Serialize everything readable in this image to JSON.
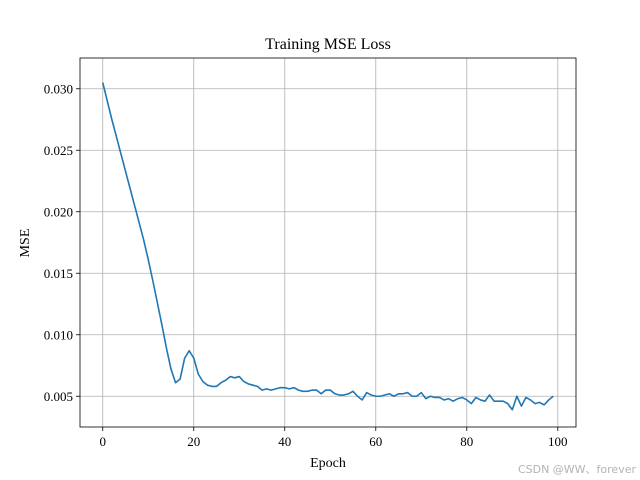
{
  "chart_data": {
    "type": "line",
    "title": "Training MSE Loss",
    "xlabel": "Epoch",
    "ylabel": "MSE",
    "xlim": [
      -5,
      104
    ],
    "ylim": [
      0.0025,
      0.0325
    ],
    "grid": true,
    "x_ticks": [
      0,
      20,
      40,
      60,
      80,
      100
    ],
    "y_ticks": [
      0.005,
      0.01,
      0.015,
      0.02,
      0.025,
      0.03
    ],
    "x_tick_labels": [
      "0",
      "20",
      "40",
      "60",
      "80",
      "100"
    ],
    "y_tick_labels": [
      "0.005",
      "0.010",
      "0.015",
      "0.020",
      "0.025",
      "0.030"
    ],
    "series": [
      {
        "color": "#1f77b4",
        "x": [
          0,
          1,
          2,
          3,
          4,
          5,
          6,
          7,
          8,
          9,
          10,
          11,
          12,
          13,
          14,
          15,
          16,
          17,
          18,
          19,
          20,
          21,
          22,
          23,
          24,
          25,
          26,
          27,
          28,
          29,
          30,
          31,
          32,
          33,
          34,
          35,
          36,
          37,
          38,
          39,
          40,
          41,
          42,
          43,
          44,
          45,
          46,
          47,
          48,
          49,
          50,
          51,
          52,
          53,
          54,
          55,
          56,
          57,
          58,
          59,
          60,
          61,
          62,
          63,
          64,
          65,
          66,
          67,
          68,
          69,
          70,
          71,
          72,
          73,
          74,
          75,
          76,
          77,
          78,
          79,
          80,
          81,
          82,
          83,
          84,
          85,
          86,
          87,
          88,
          89,
          90,
          91,
          92,
          93,
          94,
          95,
          96,
          97,
          98,
          99
        ],
        "y": [
          0.0305,
          0.029,
          0.0275,
          0.0261,
          0.0247,
          0.0233,
          0.0219,
          0.0205,
          0.0191,
          0.0177,
          0.0161,
          0.0144,
          0.0126,
          0.0108,
          0.0089,
          0.0072,
          0.0061,
          0.0064,
          0.0081,
          0.0087,
          0.0081,
          0.0068,
          0.0062,
          0.0059,
          0.0058,
          0.0058,
          0.0061,
          0.0063,
          0.0066,
          0.0065,
          0.0066,
          0.0062,
          0.006,
          0.0059,
          0.0058,
          0.0055,
          0.0056,
          0.0055,
          0.0056,
          0.0057,
          0.0057,
          0.0056,
          0.0057,
          0.0055,
          0.0054,
          0.0054,
          0.0055,
          0.0055,
          0.0052,
          0.0055,
          0.0055,
          0.0052,
          0.0051,
          0.0051,
          0.0052,
          0.0054,
          0.005,
          0.0047,
          0.0053,
          0.0051,
          0.005,
          0.005,
          0.0051,
          0.0052,
          0.005,
          0.0052,
          0.0052,
          0.0053,
          0.005,
          0.005,
          0.0053,
          0.0048,
          0.005,
          0.0049,
          0.0049,
          0.0047,
          0.0048,
          0.0046,
          0.0048,
          0.0049,
          0.0047,
          0.0044,
          0.0049,
          0.0047,
          0.0046,
          0.0051,
          0.0046,
          0.0046,
          0.0046,
          0.0044,
          0.0039,
          0.005,
          0.0042,
          0.0049,
          0.0047,
          0.0044,
          0.0045,
          0.0043,
          0.0047,
          0.005
        ]
      }
    ]
  },
  "watermark": "CSDN @WW、forever"
}
